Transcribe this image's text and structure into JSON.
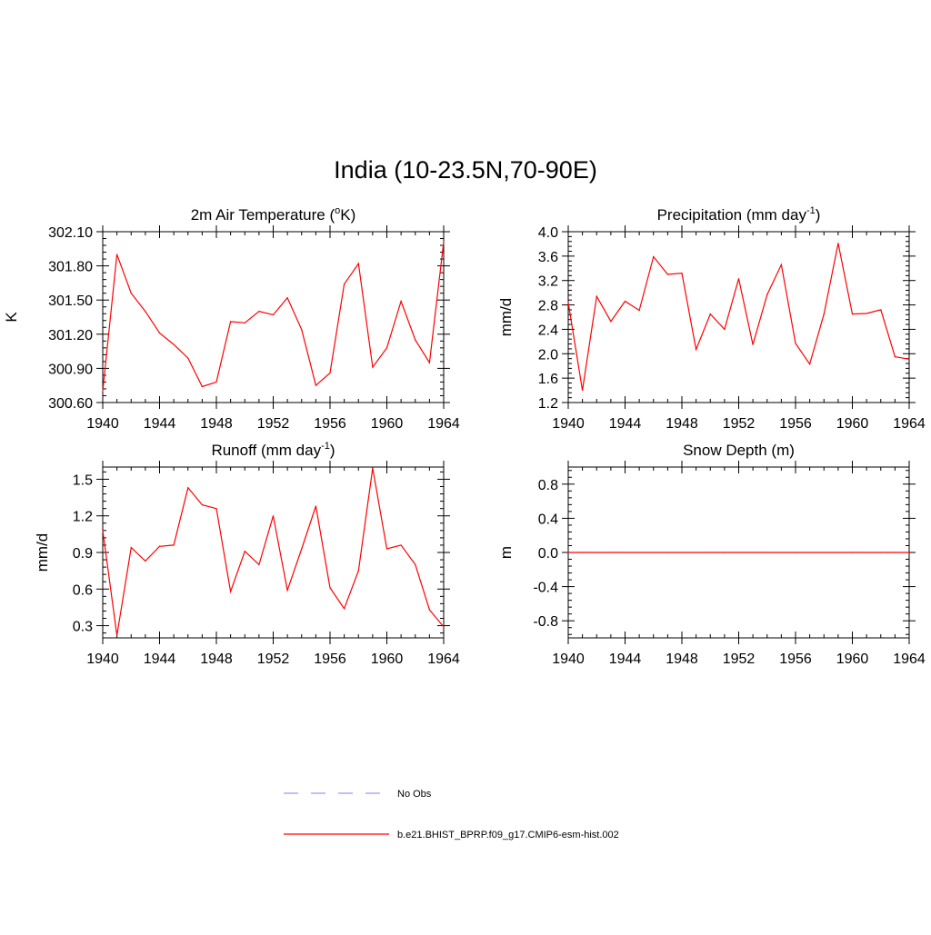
{
  "figure": {
    "title": "India (10-23.5N,70-90E)",
    "line_color": "#ff0000",
    "obs_color": "#9999ff"
  },
  "legend": {
    "position": "bottom-center",
    "entries": [
      {
        "label": "No Obs",
        "style": "dashed",
        "color": "#9999ff"
      },
      {
        "label": "b.e21.BHIST_BPRP.f09_g17.CMIP6-esm-hist.002",
        "style": "solid",
        "color": "#ff0000"
      }
    ]
  },
  "chart_data": [
    {
      "type": "line",
      "title": "2m Air Temperature (",
      "title_parts": [
        "2m Air Temperature (",
        "o",
        "K)"
      ],
      "title_style": "superscript",
      "ylabel": "K",
      "xlim": [
        1940,
        1964
      ],
      "ylim": [
        300.6,
        302.1
      ],
      "yticks": [
        300.6,
        300.9,
        301.2,
        301.5,
        301.8,
        302.1
      ],
      "ytick_labels": [
        "300.60",
        "300.90",
        "301.20",
        "301.50",
        "301.80",
        "302.10"
      ],
      "xticks": [
        1940,
        1944,
        1948,
        1952,
        1956,
        1960,
        1964
      ],
      "xtick_labels": [
        "1940",
        "1944",
        "1948",
        "1952",
        "1956",
        "1960",
        "1964"
      ],
      "x": [
        1940,
        1941,
        1942,
        1943,
        1944,
        1945,
        1946,
        1947,
        1948,
        1949,
        1950,
        1951,
        1952,
        1953,
        1954,
        1955,
        1956,
        1957,
        1958,
        1959,
        1960,
        1961,
        1962,
        1963,
        1964
      ],
      "series": [
        {
          "name": "b.e21.BHIST_BPRP.f09_g17.CMIP6-esm-hist.002",
          "values": [
            300.7,
            301.9,
            301.56,
            301.4,
            301.21,
            301.11,
            300.99,
            300.74,
            300.78,
            301.31,
            301.3,
            301.4,
            301.37,
            301.52,
            301.24,
            300.75,
            300.86,
            301.64,
            301.82,
            300.91,
            301.08,
            301.49,
            301.15,
            300.95,
            302.01
          ]
        }
      ]
    },
    {
      "type": "line",
      "title": "Precipitation (mm day",
      "title_parts": [
        "Precipitation (mm day",
        "-1",
        ")"
      ],
      "title_style": "superscript",
      "ylabel": "mm/d",
      "xlim": [
        1940,
        1964
      ],
      "ylim": [
        1.2,
        4.0
      ],
      "yticks": [
        1.2,
        1.6,
        2.0,
        2.4,
        2.8,
        3.2,
        3.6,
        4.0
      ],
      "ytick_labels": [
        "1.2",
        "1.6",
        "2.0",
        "2.4",
        "2.8",
        "3.2",
        "3.6",
        "4.0"
      ],
      "xticks": [
        1940,
        1944,
        1948,
        1952,
        1956,
        1960,
        1964
      ],
      "xtick_labels": [
        "1940",
        "1944",
        "1948",
        "1952",
        "1956",
        "1960",
        "1964"
      ],
      "x": [
        1940,
        1941,
        1942,
        1943,
        1944,
        1945,
        1946,
        1947,
        1948,
        1949,
        1950,
        1951,
        1952,
        1953,
        1954,
        1955,
        1956,
        1957,
        1958,
        1959,
        1960,
        1961,
        1962,
        1963,
        1964
      ],
      "series": [
        {
          "name": "b.e21.BHIST_BPRP.f09_g17.CMIP6-esm-hist.002",
          "values": [
            2.84,
            1.4,
            2.94,
            2.53,
            2.86,
            2.71,
            3.59,
            3.3,
            3.32,
            2.07,
            2.65,
            2.4,
            3.23,
            2.15,
            2.97,
            3.46,
            2.17,
            1.83,
            2.65,
            3.81,
            2.65,
            2.66,
            2.72,
            1.95,
            1.91
          ]
        }
      ]
    },
    {
      "type": "line",
      "title": "Runoff (mm day",
      "title_parts": [
        "Runoff (mm day",
        "-1",
        ")"
      ],
      "title_style": "superscript",
      "ylabel": "mm/d",
      "xlim": [
        1940,
        1964
      ],
      "ylim": [
        0.2,
        1.6
      ],
      "yticks": [
        0.3,
        0.6,
        0.9,
        1.2,
        1.5
      ],
      "ytick_labels": [
        "0.3",
        "0.6",
        "0.9",
        "1.2",
        "1.5"
      ],
      "xticks": [
        1940,
        1944,
        1948,
        1952,
        1956,
        1960,
        1964
      ],
      "xtick_labels": [
        "1940",
        "1944",
        "1948",
        "1952",
        "1956",
        "1960",
        "1964"
      ],
      "x": [
        1940,
        1941,
        1942,
        1943,
        1944,
        1945,
        1946,
        1947,
        1948,
        1949,
        1950,
        1951,
        1952,
        1953,
        1954,
        1955,
        1956,
        1957,
        1958,
        1959,
        1960,
        1961,
        1962,
        1963,
        1964
      ],
      "series": [
        {
          "name": "b.e21.BHIST_BPRP.f09_g17.CMIP6-esm-hist.002",
          "values": [
            1.08,
            0.22,
            0.94,
            0.83,
            0.95,
            0.96,
            1.43,
            1.29,
            1.26,
            0.58,
            0.91,
            0.8,
            1.2,
            0.59,
            0.93,
            1.28,
            0.61,
            0.44,
            0.75,
            1.59,
            0.93,
            0.96,
            0.8,
            0.43,
            0.29
          ]
        }
      ]
    },
    {
      "type": "line",
      "title": "Snow Depth (m)",
      "title_parts": [
        "Snow Depth (m)",
        "",
        ""
      ],
      "title_style": "plain",
      "ylabel": "m",
      "xlim": [
        1940,
        1964
      ],
      "ylim": [
        -1.0,
        1.0
      ],
      "yticks": [
        -0.8,
        -0.4,
        0.0,
        0.4,
        0.8
      ],
      "ytick_labels": [
        "-0.8",
        "-0.4",
        "0.0",
        "0.4",
        "0.8"
      ],
      "xticks": [
        1940,
        1944,
        1948,
        1952,
        1956,
        1960,
        1964
      ],
      "xtick_labels": [
        "1940",
        "1944",
        "1948",
        "1952",
        "1956",
        "1960",
        "1964"
      ],
      "x": [
        1940,
        1941,
        1942,
        1943,
        1944,
        1945,
        1946,
        1947,
        1948,
        1949,
        1950,
        1951,
        1952,
        1953,
        1954,
        1955,
        1956,
        1957,
        1958,
        1959,
        1960,
        1961,
        1962,
        1963,
        1964
      ],
      "series": [
        {
          "name": "b.e21.BHIST_BPRP.f09_g17.CMIP6-esm-hist.002",
          "values": [
            0,
            0,
            0,
            0,
            0,
            0,
            0,
            0,
            0,
            0,
            0,
            0,
            0,
            0,
            0,
            0,
            0,
            0,
            0,
            0,
            0,
            0,
            0,
            0,
            0
          ]
        }
      ]
    }
  ]
}
